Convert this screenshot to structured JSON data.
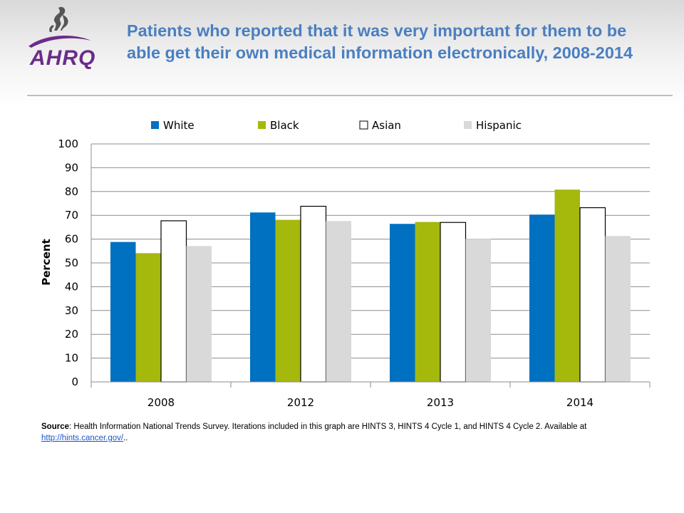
{
  "header": {
    "logo_text": "AHRQ",
    "title": "Patients who reported that it was very important for them to be able get their own medical information electronically, 2008-2014"
  },
  "colors": {
    "title": "#4a7fc1",
    "White": "#0070c0",
    "Black": "#a5b80c",
    "Asian": "#ffffff",
    "Hispanic": "#d9d9d9",
    "logo_purple": "#6b2c8a"
  },
  "chart_data": {
    "type": "bar",
    "title": "",
    "xlabel": "",
    "ylabel": "Percent",
    "ylim": [
      0,
      100
    ],
    "yticks": [
      0,
      10,
      20,
      30,
      40,
      50,
      60,
      70,
      80,
      90,
      100
    ],
    "grid": true,
    "legend_position": "top",
    "categories": [
      "2008",
      "2012",
      "2013",
      "2014"
    ],
    "series": [
      {
        "name": "White",
        "values": [
          58.8,
          71.2,
          66.4,
          70.3
        ]
      },
      {
        "name": "Black",
        "values": [
          54.1,
          68.1,
          67.2,
          80.8
        ]
      },
      {
        "name": "Asian",
        "values": [
          67.7,
          73.8,
          67.0,
          73.2
        ]
      },
      {
        "name": "Hispanic",
        "values": [
          57.1,
          67.6,
          60.1,
          61.3
        ]
      }
    ]
  },
  "footer": {
    "source_label": "Source",
    "source_text": ": Health Information National Trends Survey. Iterations included in this graph are HINTS 3, HINTS 4 Cycle 1, and HINTS 4 Cycle 2. Available at ",
    "source_link": "http://hints.cancer.gov/",
    "source_tail": ".."
  }
}
